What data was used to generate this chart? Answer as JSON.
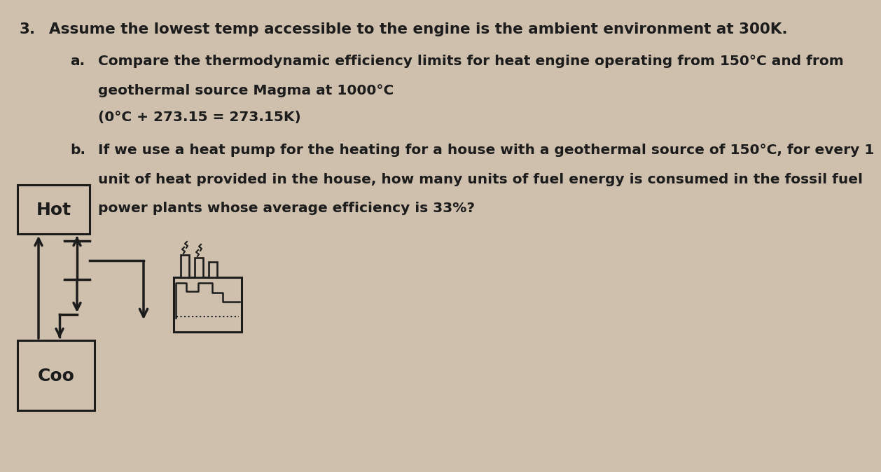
{
  "bg_color": "#cfc0ae",
  "text_color": "#1c1c1c",
  "title_num": "3.",
  "title_text": "Assume the lowest temp accessible to the engine is the ambient environment at 300K.",
  "part_a_label": "a.",
  "part_a_line1": "Compare the thermodynamic efficiency limits for heat engine operating from 150°C and from",
  "part_a_line2": "geothermal source Magma at 1000°C",
  "part_a_line3": "(0°C + 273.15 = 273.15K)",
  "part_b_label": "b.",
  "part_b_line1": "If we use a heat pump for the heating for a house with a geothermal source of 150°C, for every 1",
  "part_b_line2": "unit of heat provided in the house, how many units of fuel energy is consumed in the fossil fuel",
  "part_b_line3": "power plants whose average efficiency is 33%?",
  "hot_label": "Hot",
  "cool_label": "Coo",
  "font_size_main": 14.5,
  "font_size_sub": 14.0,
  "font_size_diagram": 18
}
